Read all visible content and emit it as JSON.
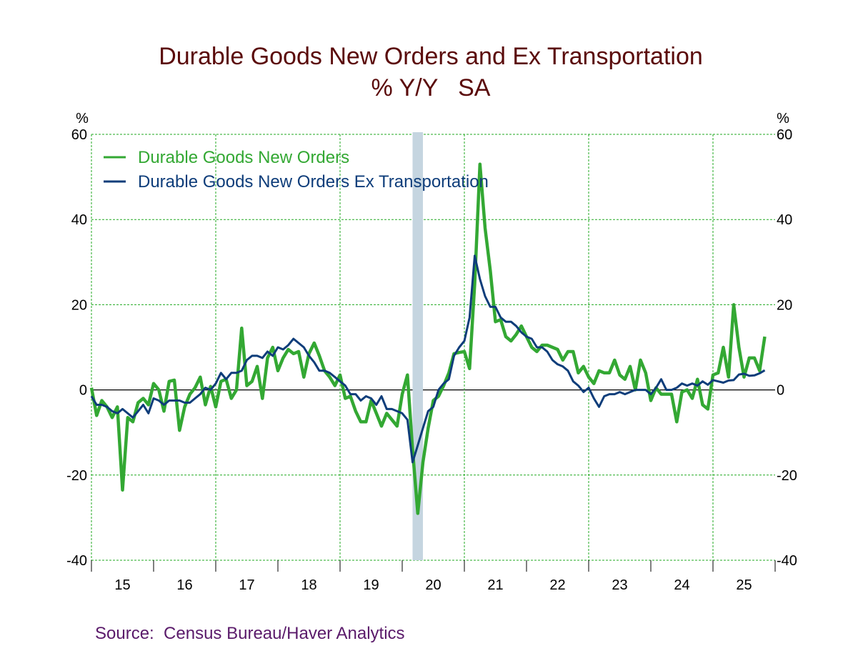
{
  "chart_data": {
    "type": "line",
    "title": "Durable Goods New Orders and Ex Transportation",
    "subtitle": "% Y/Y   SA",
    "ylabel_left": "%",
    "ylabel_right": "%",
    "ylim": [
      -40,
      60
    ],
    "yticks": [
      60,
      40,
      20,
      0,
      -20,
      -40
    ],
    "x_start": "2015-01",
    "x_end": "2025-12",
    "frequency": "monthly",
    "xtick_labels": [
      "15",
      "16",
      "17",
      "18",
      "19",
      "20",
      "21",
      "22",
      "23",
      "24",
      "25"
    ],
    "grid": true,
    "legend_placement": "top-left",
    "recession": {
      "start": "2020-03",
      "end": "2020-04",
      "color": "#c5d5e0"
    },
    "colors": {
      "title": "#5a0a0a",
      "grid": "#22aa22",
      "source": "#5a1a6a"
    },
    "series": [
      {
        "name": "Durable Goods New Orders",
        "color": "#33a833",
        "values": [
          0.5,
          -6,
          -2.5,
          -4,
          -6.5,
          -4,
          -23.5,
          -6.5,
          -7.5,
          -3,
          -2,
          -3.5,
          1.5,
          0,
          -5,
          2,
          2.3,
          -9.5,
          -4,
          -1,
          0.5,
          3,
          -3.5,
          0.8,
          -4,
          2,
          2.5,
          -2,
          0,
          14.5,
          1,
          2,
          5.5,
          -2,
          7.5,
          10,
          4.5,
          7.5,
          9.5,
          8.5,
          9,
          3,
          8.5,
          11,
          8,
          4.5,
          3,
          1,
          3.5,
          -2,
          -1.5,
          -5,
          -7.5,
          -7.5,
          -2.5,
          -5.5,
          -8.5,
          -5.5,
          -7,
          -8.5,
          -1,
          3.5,
          -14,
          -29,
          -17,
          -9,
          -2.5,
          -1.5,
          1,
          4,
          8.5,
          8.8,
          9,
          5,
          25,
          53,
          38,
          28,
          16,
          16.5,
          12.5,
          11.5,
          13,
          15,
          12.5,
          10,
          9,
          10.5,
          10.5,
          10,
          9.5,
          7,
          9,
          9,
          4,
          5.5,
          3,
          1.5,
          4.5,
          4,
          4,
          7,
          3.5,
          2.5,
          5.5,
          0,
          7,
          4,
          -2.5,
          0.5,
          -1,
          -1,
          -1,
          -7.5,
          -0.5,
          0,
          -2,
          2.5,
          -3.5,
          -4.5,
          3.5,
          4,
          10,
          3,
          20,
          10,
          3,
          7.5,
          7.5,
          4.5,
          12.5
        ]
      },
      {
        "name": "Durable Goods New Orders Ex Transportation",
        "color": "#0e3d7a",
        "values": [
          -1.5,
          -3.5,
          -3.5,
          -4,
          -5,
          -5.5,
          -4.5,
          -5.5,
          -6.5,
          -5,
          -3.5,
          -5.5,
          -2,
          -2.5,
          -3.5,
          -2.5,
          -2.5,
          -2.5,
          -3,
          -3,
          -2,
          -1,
          0.5,
          0,
          1.5,
          4,
          2.5,
          4,
          4,
          4.5,
          7,
          8,
          8,
          7.5,
          9,
          8,
          10,
          9.5,
          10.5,
          12,
          11,
          10,
          8,
          6.5,
          4.5,
          4.5,
          4,
          3,
          2,
          1,
          -1,
          -1,
          -2.5,
          -1.5,
          -2,
          -3.5,
          -1.5,
          -4.5,
          -4.5,
          -5,
          -5.5,
          -7,
          -17,
          -13,
          -9,
          -5,
          -4,
          0,
          1.5,
          2.5,
          8,
          10,
          11.5,
          17,
          31.5,
          26,
          22,
          19.5,
          19.5,
          17,
          16,
          16,
          15,
          13.5,
          12.5,
          12,
          10,
          10,
          9,
          7,
          6,
          5.5,
          4.5,
          2,
          1,
          -0.5,
          0.5,
          -2,
          -4,
          -1.5,
          -1,
          -1,
          -0.5,
          -1,
          -0.5,
          0,
          0,
          0,
          -1,
          0.5,
          2.5,
          0,
          0,
          0.5,
          1.5,
          1,
          1.5,
          1,
          2,
          1.2,
          2.3,
          2,
          1.7,
          2.2,
          2.3,
          3.6,
          3.8,
          3.3,
          3.4,
          3.9,
          4.6
        ]
      }
    ],
    "source": "Source:  Census Bureau/Haver Analytics"
  }
}
